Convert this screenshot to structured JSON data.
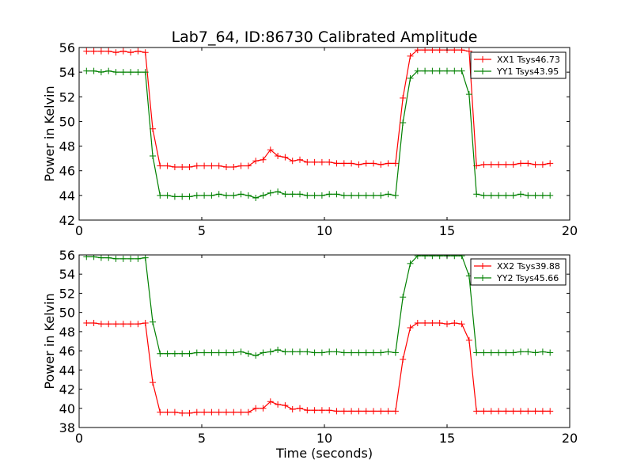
{
  "chart_data": [
    {
      "type": "line",
      "title": "Lab7_64, ID:86730 Calibrated Amplitude",
      "xlabel": "",
      "ylabel": "Power in Kelvin",
      "xlim": [
        0,
        20
      ],
      "ylim": [
        42,
        56
      ],
      "xticks": [
        "0",
        "5",
        "10",
        "15",
        "20"
      ],
      "yticks": [
        "42",
        "44",
        "46",
        "48",
        "50",
        "52",
        "54",
        "56"
      ],
      "grid": false,
      "legend_position": "top-right",
      "x": [
        0.3,
        0.6,
        0.9,
        1.2,
        1.5,
        1.8,
        2.1,
        2.4,
        2.7,
        3.0,
        3.3,
        3.6,
        3.9,
        4.2,
        4.5,
        4.8,
        5.1,
        5.4,
        5.7,
        6.0,
        6.3,
        6.6,
        6.9,
        7.2,
        7.5,
        7.8,
        8.1,
        8.4,
        8.7,
        9.0,
        9.3,
        9.6,
        9.9,
        10.2,
        10.5,
        10.8,
        11.1,
        11.4,
        11.7,
        12.0,
        12.3,
        12.6,
        12.9,
        13.2,
        13.5,
        13.8,
        14.1,
        14.4,
        14.7,
        15.0,
        15.3,
        15.6,
        15.9,
        16.2,
        16.5,
        16.8,
        17.1,
        17.4,
        17.7,
        18.0,
        18.3,
        18.6,
        18.9,
        19.2
      ],
      "series": [
        {
          "name": "XX1 Tsys46.73",
          "color": "#ff0000",
          "values": [
            55.7,
            55.7,
            55.7,
            55.7,
            55.6,
            55.7,
            55.6,
            55.7,
            55.6,
            49.4,
            46.4,
            46.4,
            46.3,
            46.3,
            46.3,
            46.4,
            46.4,
            46.4,
            46.4,
            46.3,
            46.3,
            46.4,
            46.4,
            46.8,
            46.9,
            47.7,
            47.2,
            47.1,
            46.8,
            46.9,
            46.7,
            46.7,
            46.7,
            46.7,
            46.6,
            46.6,
            46.6,
            46.5,
            46.6,
            46.6,
            46.5,
            46.6,
            46.6,
            51.9,
            55.3,
            55.8,
            55.8,
            55.8,
            55.8,
            55.8,
            55.8,
            55.8,
            55.7,
            46.4,
            46.5,
            46.5,
            46.5,
            46.5,
            46.5,
            46.6,
            46.6,
            46.5,
            46.5,
            46.6
          ]
        },
        {
          "name": "YY1 Tsys43.95",
          "color": "#008000",
          "values": [
            54.1,
            54.1,
            54.0,
            54.1,
            54.0,
            54.0,
            54.0,
            54.0,
            54.0,
            47.2,
            44.0,
            44.0,
            43.9,
            43.9,
            43.9,
            44.0,
            44.0,
            44.0,
            44.1,
            44.0,
            44.0,
            44.1,
            44.0,
            43.8,
            44.0,
            44.2,
            44.3,
            44.1,
            44.1,
            44.1,
            44.0,
            44.0,
            44.0,
            44.1,
            44.1,
            44.0,
            44.0,
            44.0,
            44.0,
            44.0,
            44.0,
            44.1,
            44.0,
            49.9,
            53.5,
            54.1,
            54.1,
            54.1,
            54.1,
            54.1,
            54.1,
            54.1,
            52.2,
            44.1,
            44.0,
            44.0,
            44.0,
            44.0,
            44.0,
            44.1,
            44.0,
            44.0,
            44.0,
            44.0
          ]
        }
      ]
    },
    {
      "type": "line",
      "title": "",
      "xlabel": "Time (seconds)",
      "ylabel": "Power in Kelvin",
      "xlim": [
        0,
        20
      ],
      "ylim": [
        38,
        56
      ],
      "xticks": [
        "0",
        "5",
        "10",
        "15",
        "20"
      ],
      "yticks": [
        "38",
        "40",
        "42",
        "44",
        "46",
        "48",
        "50",
        "52",
        "54",
        "56"
      ],
      "grid": false,
      "legend_position": "top-right",
      "x": [
        0.3,
        0.6,
        0.9,
        1.2,
        1.5,
        1.8,
        2.1,
        2.4,
        2.7,
        3.0,
        3.3,
        3.6,
        3.9,
        4.2,
        4.5,
        4.8,
        5.1,
        5.4,
        5.7,
        6.0,
        6.3,
        6.6,
        6.9,
        7.2,
        7.5,
        7.8,
        8.1,
        8.4,
        8.7,
        9.0,
        9.3,
        9.6,
        9.9,
        10.2,
        10.5,
        10.8,
        11.1,
        11.4,
        11.7,
        12.0,
        12.3,
        12.6,
        12.9,
        13.2,
        13.5,
        13.8,
        14.1,
        14.4,
        14.7,
        15.0,
        15.3,
        15.6,
        15.9,
        16.2,
        16.5,
        16.8,
        17.1,
        17.4,
        17.7,
        18.0,
        18.3,
        18.6,
        18.9,
        19.2
      ],
      "series": [
        {
          "name": "XX2 Tsys39.88",
          "color": "#ff0000",
          "values": [
            48.9,
            48.9,
            48.8,
            48.8,
            48.8,
            48.8,
            48.8,
            48.8,
            48.9,
            42.7,
            39.6,
            39.6,
            39.6,
            39.5,
            39.5,
            39.6,
            39.6,
            39.6,
            39.6,
            39.6,
            39.6,
            39.6,
            39.6,
            40.0,
            40.0,
            40.7,
            40.4,
            40.3,
            39.9,
            40.0,
            39.8,
            39.8,
            39.8,
            39.8,
            39.7,
            39.7,
            39.7,
            39.7,
            39.7,
            39.7,
            39.7,
            39.7,
            39.7,
            45.1,
            48.4,
            48.9,
            48.9,
            48.9,
            48.9,
            48.8,
            48.9,
            48.8,
            47.1,
            39.7,
            39.7,
            39.7,
            39.7,
            39.7,
            39.7,
            39.7,
            39.7,
            39.7,
            39.7,
            39.7
          ]
        },
        {
          "name": "YY2 Tsys45.66",
          "color": "#008000",
          "values": [
            55.8,
            55.8,
            55.7,
            55.7,
            55.6,
            55.6,
            55.6,
            55.6,
            55.7,
            49.0,
            45.7,
            45.7,
            45.7,
            45.7,
            45.7,
            45.8,
            45.8,
            45.8,
            45.8,
            45.8,
            45.8,
            45.9,
            45.7,
            45.5,
            45.8,
            45.9,
            46.1,
            45.9,
            45.9,
            45.9,
            45.9,
            45.8,
            45.8,
            45.9,
            45.9,
            45.8,
            45.8,
            45.8,
            45.8,
            45.8,
            45.8,
            45.9,
            45.8,
            51.6,
            55.1,
            55.9,
            55.9,
            55.9,
            55.9,
            55.9,
            55.9,
            55.9,
            53.8,
            45.8,
            45.8,
            45.8,
            45.8,
            45.8,
            45.8,
            45.9,
            45.9,
            45.8,
            45.9,
            45.8
          ]
        }
      ]
    }
  ]
}
